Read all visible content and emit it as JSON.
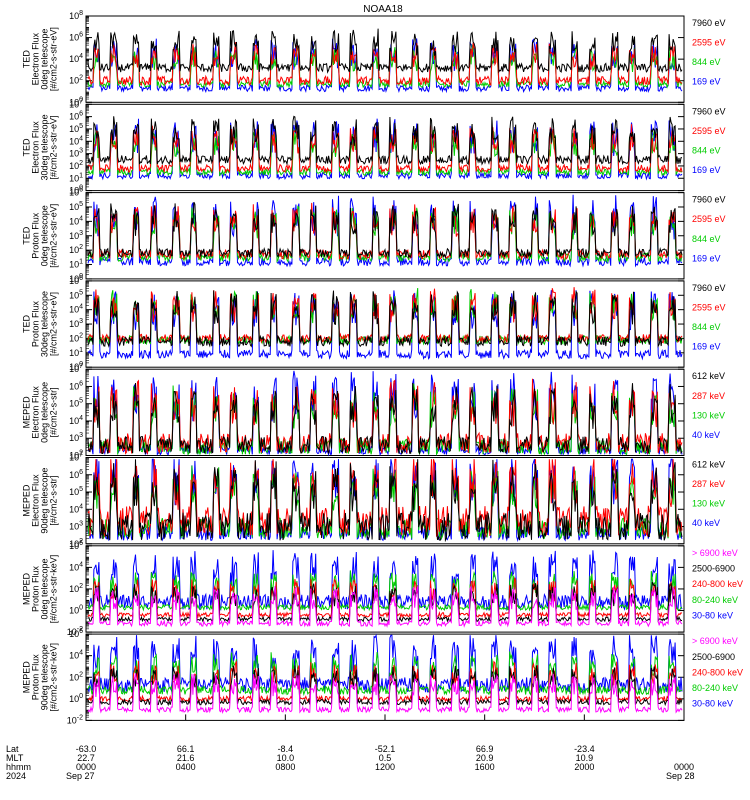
{
  "title": "NOAA18",
  "panels": [
    {
      "ylabel_lines": [
        "TED",
        "Electron Flux",
        "0deg telescope",
        "[#/cm2-s-str-eV]"
      ],
      "yexp_min": 0,
      "yexp_max": 8,
      "tick_exps": [
        0,
        2,
        4,
        6,
        8
      ],
      "legend": [
        {
          "text": "7960 eV",
          "color": "#000000"
        },
        {
          "text": "2595 eV",
          "color": "#ff0000"
        },
        {
          "text": "844 eV",
          "color": "#00cc00"
        },
        {
          "text": "169 eV",
          "color": "#0000ff"
        }
      ],
      "series_levels": [
        [
          3.2,
          0.8
        ],
        [
          2.0,
          0.8
        ],
        [
          1.7,
          0.6
        ],
        [
          1.3,
          0.6
        ]
      ]
    },
    {
      "ylabel_lines": [
        "TED",
        "Electron Flux",
        "30deg telescope",
        "[#/cm2-s-str-eV]"
      ],
      "yexp_min": 0,
      "yexp_max": 7,
      "tick_exps": [
        0,
        1,
        2,
        3,
        4,
        5,
        6,
        7
      ],
      "legend": [
        {
          "text": "7960 eV",
          "color": "#000000"
        },
        {
          "text": "2595 eV",
          "color": "#ff0000"
        },
        {
          "text": "844 eV",
          "color": "#00cc00"
        },
        {
          "text": "169 eV",
          "color": "#0000ff"
        }
      ],
      "series_levels": [
        [
          2.5,
          0.7
        ],
        [
          1.8,
          0.6
        ],
        [
          1.5,
          0.5
        ],
        [
          1.2,
          0.5
        ]
      ]
    },
    {
      "ylabel_lines": [
        "TED",
        "Proton Flux",
        "0deg telescope",
        "[#/cm2-s-str-eV]"
      ],
      "yexp_min": 0,
      "yexp_max": 6,
      "tick_exps": [
        0,
        1,
        2,
        3,
        4,
        5,
        6
      ],
      "legend": [
        {
          "text": "7960 eV",
          "color": "#000000"
        },
        {
          "text": "2595 eV",
          "color": "#ff0000"
        },
        {
          "text": "844 eV",
          "color": "#00cc00"
        },
        {
          "text": "169 eV",
          "color": "#0000ff"
        }
      ],
      "series_levels": [
        [
          1.8,
          0.6
        ],
        [
          1.7,
          0.6
        ],
        [
          1.5,
          0.6
        ],
        [
          1.2,
          0.6
        ]
      ]
    },
    {
      "ylabel_lines": [
        "TED",
        "Proton Flux",
        "30deg telescope",
        "[#/cm2-s-str-eV]"
      ],
      "yexp_min": 0,
      "yexp_max": 6,
      "tick_exps": [
        0,
        1,
        2,
        3,
        4,
        5,
        6
      ],
      "legend": [
        {
          "text": "7960 eV",
          "color": "#000000"
        },
        {
          "text": "2595 eV",
          "color": "#ff0000"
        },
        {
          "text": "844 eV",
          "color": "#00cc00"
        },
        {
          "text": "169 eV",
          "color": "#0000ff"
        }
      ],
      "series_levels": [
        [
          1.8,
          0.7
        ],
        [
          2.0,
          0.6
        ],
        [
          1.9,
          0.6
        ],
        [
          0.9,
          0.6
        ]
      ]
    },
    {
      "ylabel_lines": [
        "MEPED",
        "Electron Flux",
        "0deg telescope",
        "[#/cm2-s-str]"
      ],
      "yexp_min": 2,
      "yexp_max": 7,
      "tick_exps": [
        2,
        3,
        4,
        5,
        6,
        7
      ],
      "legend": [
        {
          "text": "612 keV",
          "color": "#000000"
        },
        {
          "text": "287 keV",
          "color": "#ff0000"
        },
        {
          "text": "130 keV",
          "color": "#00cc00"
        },
        {
          "text": "40 keV",
          "color": "#0000ff"
        }
      ],
      "series_levels": [
        [
          2.6,
          1.0
        ],
        [
          2.7,
          1.2
        ],
        [
          2.5,
          0.9
        ],
        [
          2.3,
          0.5
        ]
      ]
    },
    {
      "ylabel_lines": [
        "MEPED",
        "Electron Flux",
        "90deg telescope",
        "[#/cm2-s-str]"
      ],
      "yexp_min": 2,
      "yexp_max": 7,
      "tick_exps": [
        2,
        3,
        4,
        5,
        6,
        7
      ],
      "legend": [
        {
          "text": "612 keV",
          "color": "#000000"
        },
        {
          "text": "287 keV",
          "color": "#ff0000"
        },
        {
          "text": "130 keV",
          "color": "#00cc00"
        },
        {
          "text": "40 keV",
          "color": "#0000ff"
        }
      ],
      "series_levels": [
        [
          3.0,
          1.6
        ],
        [
          3.3,
          1.8
        ],
        [
          2.9,
          1.2
        ],
        [
          2.6,
          0.8
        ]
      ]
    },
    {
      "ylabel_lines": [
        "MEPED",
        "Proton Flux",
        "0deg telescope",
        "[#/cm2-s-str-keV]"
      ],
      "yexp_min": -2,
      "yexp_max": 6,
      "tick_exps": [
        -2,
        0,
        2,
        4,
        6
      ],
      "legend": [
        {
          "text": "> 6900 keV",
          "color": "#ff00ff"
        },
        {
          "text": "2500-6900",
          "color": "#000000"
        },
        {
          "text": "240-800 keV",
          "color": "#ff0000"
        },
        {
          "text": "80-240 keV",
          "color": "#00cc00"
        },
        {
          "text": "30-80 keV",
          "color": "#0000ff"
        }
      ],
      "series_levels": [
        [
          -1.2,
          0.5
        ],
        [
          -0.8,
          0.4
        ],
        [
          -0.4,
          0.4
        ],
        [
          0.3,
          0.5
        ],
        [
          0.8,
          1.4
        ]
      ]
    },
    {
      "ylabel_lines": [
        "MEPED",
        "Proton Flux",
        "90deg telescope",
        "[#/cm2-s-str-keV]"
      ],
      "yexp_min": -2,
      "yexp_max": 6,
      "tick_exps": [
        -2,
        0,
        2,
        4,
        6
      ],
      "legend": [
        {
          "text": "> 6900 keV",
          "color": "#ff00ff"
        },
        {
          "text": "2500-6900",
          "color": "#000000"
        },
        {
          "text": "240-800 keV",
          "color": "#ff0000"
        },
        {
          "text": "80-240 keV",
          "color": "#00cc00"
        },
        {
          "text": "30-80 keV",
          "color": "#0000ff"
        }
      ],
      "series_levels": [
        [
          -1.0,
          0.5
        ],
        [
          -0.3,
          0.5
        ],
        [
          0.0,
          0.5
        ],
        [
          0.8,
          0.8
        ],
        [
          1.3,
          1.4
        ]
      ]
    }
  ],
  "footer": {
    "row_labels": [
      "Lat",
      "MLT",
      "hhmm",
      "2024"
    ],
    "columns": [
      {
        "lat": "-63.0",
        "mlt": "22.7",
        "hhmm": "0000",
        "date": "Sep 27"
      },
      {
        "lat": "66.1",
        "mlt": "21.6",
        "hhmm": "0400",
        "date": ""
      },
      {
        "lat": "-8.4",
        "mlt": "10.0",
        "hhmm": "0800",
        "date": ""
      },
      {
        "lat": "-52.1",
        "mlt": "0.5",
        "hhmm": "1200",
        "date": ""
      },
      {
        "lat": "66.9",
        "mlt": "20.9",
        "hhmm": "1600",
        "date": ""
      },
      {
        "lat": "-23.4",
        "mlt": "10.9",
        "hhmm": "2000",
        "date": ""
      },
      {
        "lat": "",
        "mlt": "",
        "hhmm": "0000",
        "date": "Sep 28"
      }
    ]
  },
  "chart_data": {
    "type": "line",
    "title": "NOAA18",
    "x_axis": {
      "ticks": [
        "0000",
        "0400",
        "0800",
        "1200",
        "1600",
        "2000",
        "0000"
      ],
      "start_date": "Sep 27",
      "end_date": "Sep 28",
      "year": "2024"
    },
    "y_scale": "log",
    "grid": false,
    "legend_position": "right",
    "orbit_passes": 15
  }
}
